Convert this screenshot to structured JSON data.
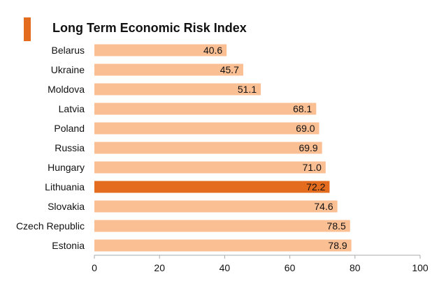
{
  "chart_data": {
    "type": "bar",
    "orientation": "horizontal",
    "title": "Long Term Economic Risk Index",
    "categories": [
      "Belarus",
      "Ukraine",
      "Moldova",
      "Latvia",
      "Poland",
      "Russia",
      "Hungary",
      "Lithuania",
      "Slovakia",
      "Czech Republic",
      "Estonia"
    ],
    "values": [
      40.6,
      45.7,
      51.1,
      68.1,
      69.0,
      69.9,
      71.0,
      72.2,
      74.6,
      78.5,
      78.9
    ],
    "value_labels": [
      "40.6",
      "45.7",
      "51.1",
      "68.1",
      "69.0",
      "69.9",
      "71.0",
      "72.2",
      "74.6",
      "78.5",
      "78.9"
    ],
    "highlight": "Lithuania",
    "xlim": [
      0,
      100
    ],
    "xticks": [
      "0",
      "20",
      "40",
      "60",
      "80",
      "100"
    ],
    "grid": false,
    "colors": {
      "bar": "#FBBF94",
      "highlight": "#E46C1F",
      "accent": "#E46C1F",
      "axis": "#AAAAAA"
    }
  }
}
